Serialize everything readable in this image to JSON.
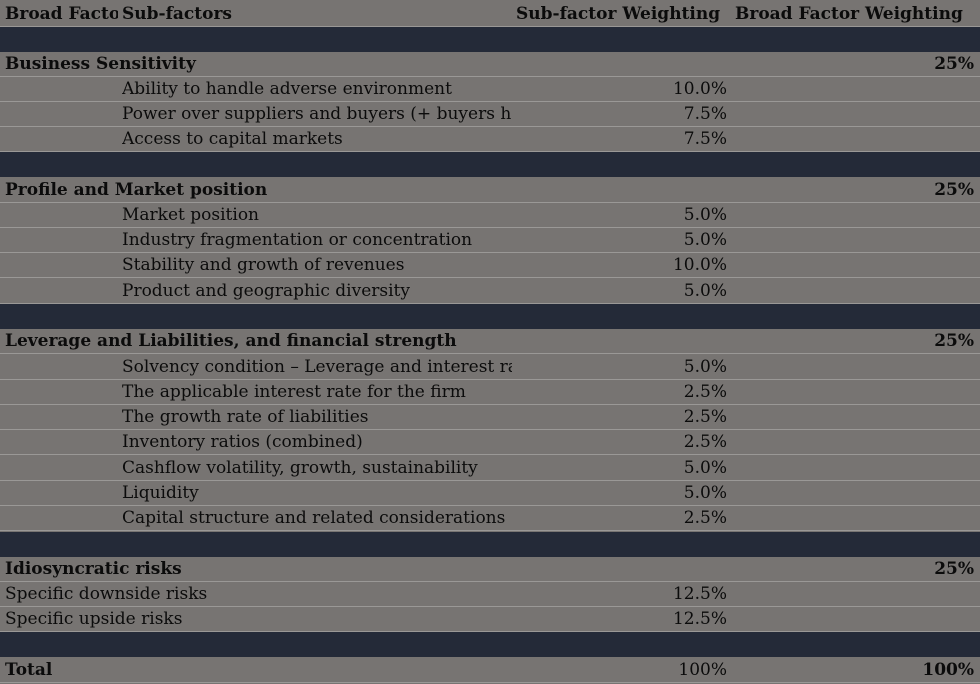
{
  "header": {
    "broad_factor": "Broad Factors",
    "sub_factors": "Sub-factors",
    "sub_weight": "Sub-factor Weighting",
    "broad_weight": "Broad Factor Weighting"
  },
  "sections": [
    {
      "title": "Business Sensitivity",
      "weight": "25%",
      "items": [
        {
          "label": "Ability to handle adverse environment",
          "weight": "10.0%"
        },
        {
          "label": "Power over suppliers and buyers (+ buyers health)",
          "weight": "7.5%"
        },
        {
          "label": "Access to capital markets",
          "weight": "7.5%"
        }
      ]
    },
    {
      "title": "Profile and Market position",
      "weight": "25%",
      "items": [
        {
          "label": "Market position",
          "weight": "5.0%"
        },
        {
          "label": "Industry fragmentation or concentration",
          "weight": "5.0%"
        },
        {
          "label": "Stability and growth of revenues",
          "weight": "10.0%"
        },
        {
          "label": "Product and geographic diversity",
          "weight": "5.0%"
        }
      ]
    },
    {
      "title": "Leverage and Liabilities, and financial strength",
      "weight": "25%",
      "items": [
        {
          "label": "Solvency condition – Leverage and interest rate",
          "weight": "5.0%"
        },
        {
          "label": "The applicable interest rate for the firm",
          "weight": "2.5%"
        },
        {
          "label": "The growth rate of liabilities",
          "weight": "2.5%"
        },
        {
          "label": "Inventory ratios (combined)",
          "weight": "2.5%"
        },
        {
          "label": "Cashflow volatility, growth, sustainability",
          "weight": "5.0%"
        },
        {
          "label": "Liquidity",
          "weight": "5.0%"
        },
        {
          "label": "Capital structure and related considerations",
          "weight": "2.5%"
        }
      ]
    },
    {
      "title": "Idiosyncratic risks",
      "weight": "25%",
      "items": [
        {
          "label": "Specific downside risks",
          "weight": "12.5%"
        },
        {
          "label": "Specific upside risks",
          "weight": "12.5%"
        }
      ]
    }
  ],
  "total": {
    "label": "Total",
    "sub_weight": "100%",
    "broad_weight": "100%"
  }
}
